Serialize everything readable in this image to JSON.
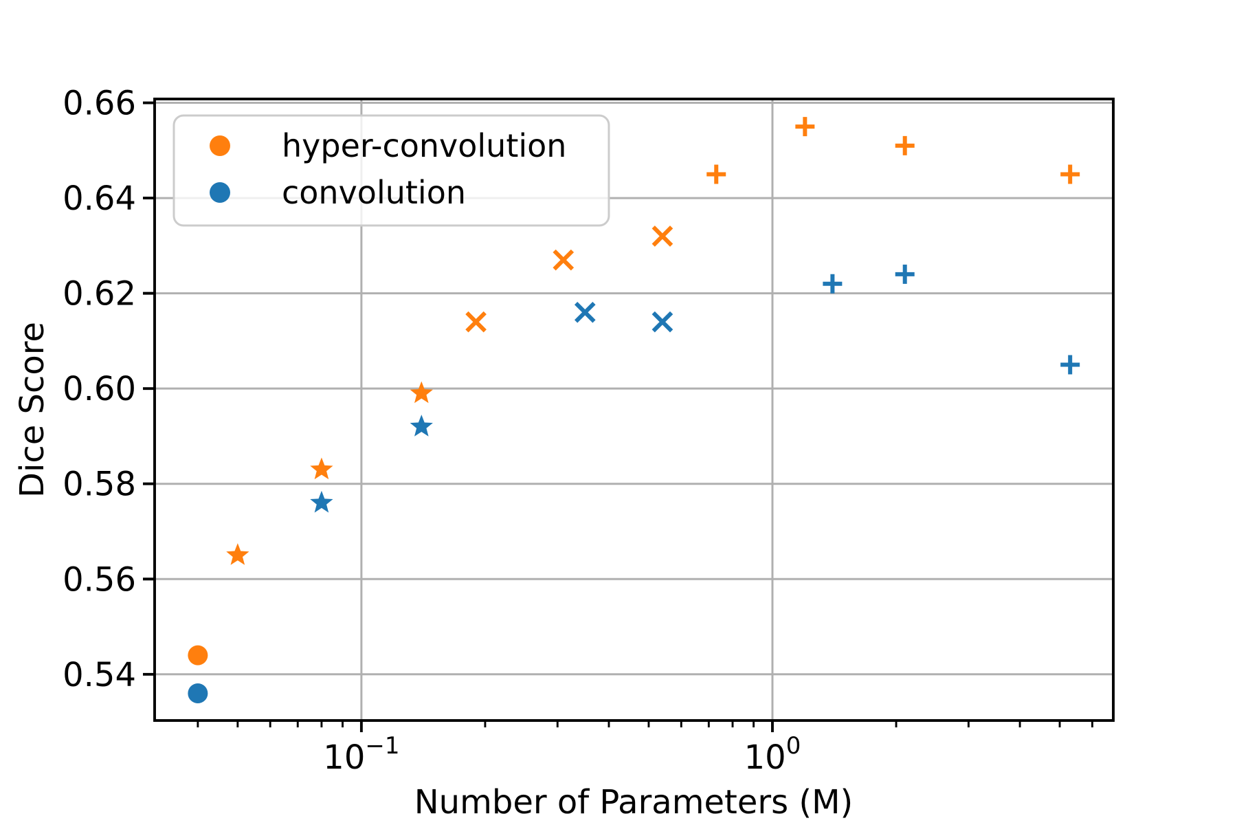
{
  "chart_data": {
    "type": "scatter",
    "title": "",
    "xlabel": "Number of Parameters (M)",
    "ylabel": "Dice Score",
    "x_scale": "log",
    "xlim": [
      0.0314,
      6.75
    ],
    "ylim": [
      0.5303,
      0.6608
    ],
    "grid": true,
    "grid_color": "#b0b0b0",
    "background_color": "#ffffff",
    "x_major_ticks": [
      {
        "value": 0.1,
        "base": "10",
        "exponent": "−1"
      },
      {
        "value": 1.0,
        "base": "10",
        "exponent": "0"
      }
    ],
    "x_minor_ticks": [
      0.04,
      0.05,
      0.06,
      0.07,
      0.08,
      0.09,
      0.2,
      0.3,
      0.4,
      0.5,
      0.6,
      0.7,
      0.8,
      0.9,
      2,
      3,
      4,
      5,
      6
    ],
    "y_ticks": [
      {
        "value": 0.54,
        "label": "0.54"
      },
      {
        "value": 0.56,
        "label": "0.56"
      },
      {
        "value": 0.58,
        "label": "0.58"
      },
      {
        "value": 0.6,
        "label": "0.60"
      },
      {
        "value": 0.62,
        "label": "0.62"
      },
      {
        "value": 0.64,
        "label": "0.64"
      },
      {
        "value": 0.66,
        "label": "0.66"
      }
    ],
    "legend": {
      "position": "upper left",
      "entries": [
        {
          "label": "hyper-convolution",
          "color": "#ff7f0e"
        },
        {
          "label": "convolution",
          "color": "#1f77b4"
        }
      ]
    },
    "series": [
      {
        "name": "hyper-convolution",
        "color": "#ff7f0e",
        "points": [
          {
            "x": 0.04,
            "y": 0.544,
            "marker": "circle"
          },
          {
            "x": 0.05,
            "y": 0.565,
            "marker": "star"
          },
          {
            "x": 0.08,
            "y": 0.583,
            "marker": "star"
          },
          {
            "x": 0.14,
            "y": 0.599,
            "marker": "star"
          },
          {
            "x": 0.19,
            "y": 0.614,
            "marker": "x"
          },
          {
            "x": 0.31,
            "y": 0.627,
            "marker": "x"
          },
          {
            "x": 0.54,
            "y": 0.632,
            "marker": "x"
          },
          {
            "x": 0.73,
            "y": 0.645,
            "marker": "plus"
          },
          {
            "x": 1.2,
            "y": 0.655,
            "marker": "plus"
          },
          {
            "x": 2.1,
            "y": 0.651,
            "marker": "plus"
          },
          {
            "x": 5.3,
            "y": 0.645,
            "marker": "plus"
          }
        ]
      },
      {
        "name": "convolution",
        "color": "#1f77b4",
        "points": [
          {
            "x": 0.04,
            "y": 0.536,
            "marker": "circle"
          },
          {
            "x": 0.08,
            "y": 0.576,
            "marker": "star"
          },
          {
            "x": 0.14,
            "y": 0.592,
            "marker": "star"
          },
          {
            "x": 0.35,
            "y": 0.616,
            "marker": "x"
          },
          {
            "x": 0.54,
            "y": 0.614,
            "marker": "x"
          },
          {
            "x": 1.4,
            "y": 0.622,
            "marker": "plus"
          },
          {
            "x": 2.1,
            "y": 0.624,
            "marker": "plus"
          },
          {
            "x": 5.3,
            "y": 0.605,
            "marker": "plus"
          }
        ]
      }
    ]
  }
}
